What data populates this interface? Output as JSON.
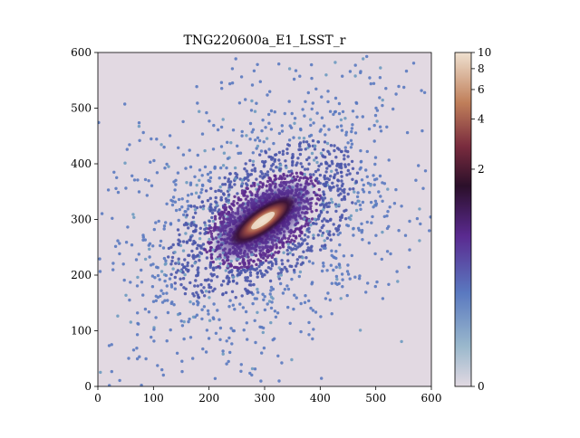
{
  "chart_data": {
    "type": "heatmap",
    "title": "TNG220600a_E1_LSST_r",
    "xlabel": "",
    "ylabel": "",
    "xlim": [
      0,
      600
    ],
    "ylim": [
      0,
      600
    ],
    "xticks": [
      0,
      100,
      200,
      300,
      400,
      500,
      600
    ],
    "yticks": [
      0,
      100,
      200,
      300,
      400,
      500,
      600
    ],
    "grid": false,
    "colormap": "twilight (lower half): lavender-white to blue to purple to dark to orange to cream",
    "colorbar": {
      "scale": "symlog",
      "range": [
        0,
        10
      ],
      "tick_values": [
        0,
        2,
        4,
        6,
        8,
        10
      ],
      "tick_labels": [
        "0",
        "2",
        "4",
        "6",
        "8",
        "10"
      ]
    },
    "source": {
      "center": [
        297,
        298
      ],
      "position_angle_deg": -35,
      "major_axis_extent": 230,
      "minor_axis_extent": 95,
      "peak_value": 10
    },
    "colors": {
      "background": "#e2d9e2",
      "low": "#5a79c0",
      "mid": "#5c2a8e",
      "dark": "#2b0f2a",
      "bright": "#c07f5a",
      "peak": "#efe1d0"
    }
  }
}
